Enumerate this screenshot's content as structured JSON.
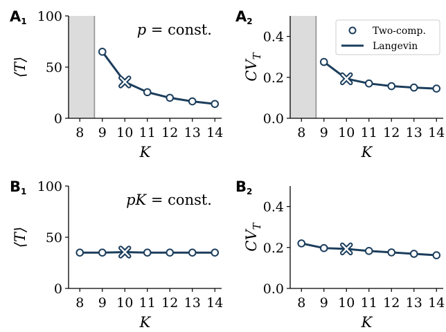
{
  "theme": {
    "line_color": "#1b3d5c",
    "shade_color": "#dcdcdc",
    "shade_edge": "#999999"
  },
  "legend": {
    "two_comp": "Two-comp.",
    "langevin": "Langevin"
  },
  "chart_data": [
    {
      "id": "A1",
      "panel_letter": "A",
      "panel_sub": "1",
      "type": "line",
      "ylabel": "⟨T⟩",
      "xlabel": "K",
      "annotation": "p = const.",
      "x": [
        9,
        10,
        11,
        12,
        13,
        14
      ],
      "two_comp": [
        65,
        35.5,
        25.5,
        20,
        16.5,
        14
      ],
      "langevin": [
        65,
        35.5,
        25.5,
        20,
        16.5,
        14
      ],
      "marked_x": 10,
      "shaded_region": [
        7.5,
        8.65
      ],
      "xlim": [
        7.5,
        14.3
      ],
      "ylim": [
        0,
        100
      ],
      "xticks": [
        8,
        9,
        10,
        11,
        12,
        13,
        14
      ],
      "yticks": [
        0,
        50,
        100
      ],
      "ytick_labels": [
        "0",
        "50",
        "100"
      ]
    },
    {
      "id": "A2",
      "panel_letter": "A",
      "panel_sub": "2",
      "type": "line",
      "ylabel": "CV_T",
      "xlabel": "K",
      "x": [
        9,
        10,
        11,
        12,
        13,
        14
      ],
      "two_comp": [
        0.275,
        0.193,
        0.17,
        0.157,
        0.15,
        0.145
      ],
      "langevin": [
        0.275,
        0.193,
        0.17,
        0.157,
        0.15,
        0.145
      ],
      "marked_x": 10,
      "shaded_region": [
        7.5,
        8.65
      ],
      "legend_position": "top-right",
      "xlim": [
        7.5,
        14.3
      ],
      "ylim": [
        0,
        0.5
      ],
      "xticks": [
        8,
        9,
        10,
        11,
        12,
        13,
        14
      ],
      "yticks": [
        0,
        0.2,
        0.4
      ],
      "ytick_labels": [
        "0.0",
        "0.2",
        "0.4"
      ]
    },
    {
      "id": "B1",
      "panel_letter": "B",
      "panel_sub": "1",
      "type": "line",
      "ylabel": "⟨T⟩",
      "xlabel": "K",
      "annotation": "pK = const.",
      "x": [
        8,
        9,
        10,
        11,
        12,
        13,
        14
      ],
      "two_comp": [
        35,
        35,
        35.5,
        35,
        35,
        35,
        35
      ],
      "langevin": [
        35,
        35,
        35.5,
        35,
        35,
        35,
        35
      ],
      "marked_x": 10,
      "xlim": [
        7.5,
        14.3
      ],
      "ylim": [
        0,
        100
      ],
      "xticks": [
        8,
        9,
        10,
        11,
        12,
        13,
        14
      ],
      "yticks": [
        0,
        50,
        100
      ],
      "ytick_labels": [
        "0",
        "50",
        "100"
      ]
    },
    {
      "id": "B2",
      "panel_letter": "B",
      "panel_sub": "2",
      "type": "line",
      "ylabel": "CV_T",
      "xlabel": "K",
      "x": [
        8,
        9,
        10,
        11,
        12,
        13,
        14
      ],
      "two_comp": [
        0.22,
        0.197,
        0.193,
        0.183,
        0.176,
        0.169,
        0.162
      ],
      "langevin": [
        0.22,
        0.197,
        0.193,
        0.183,
        0.176,
        0.169,
        0.162
      ],
      "marked_x": 10,
      "xlim": [
        7.5,
        14.3
      ],
      "ylim": [
        0,
        0.5
      ],
      "xticks": [
        8,
        9,
        10,
        11,
        12,
        13,
        14
      ],
      "yticks": [
        0,
        0.2,
        0.4
      ],
      "ytick_labels": [
        "0.0",
        "0.2",
        "0.4"
      ]
    }
  ]
}
